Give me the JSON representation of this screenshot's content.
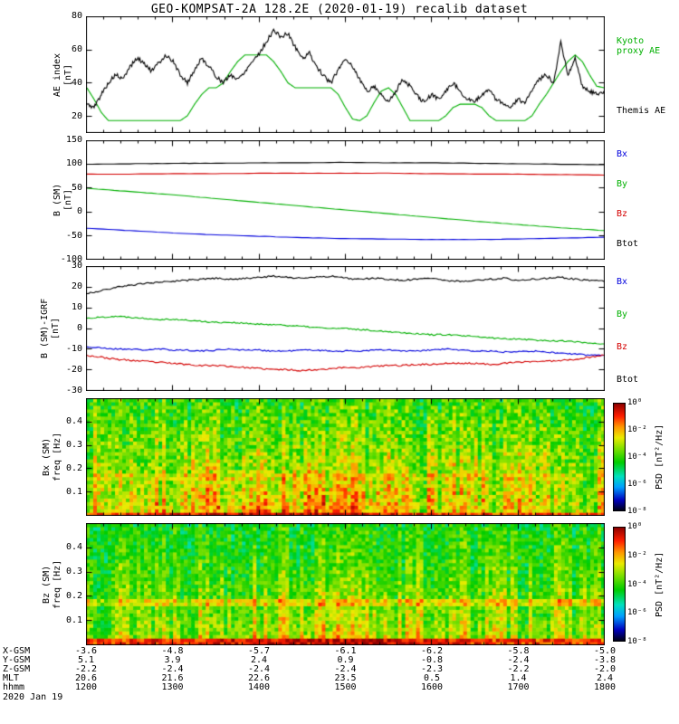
{
  "title": "GEO-KOMPSAT-2A 128.2E (2020-01-19) recalib dataset",
  "panels": {
    "ae": {
      "ylabel": "AE index\n[nT]",
      "yticks": [
        "80",
        "60",
        "40",
        "20"
      ],
      "legend_kyoto": "Kyoto\nproxy AE",
      "legend_themis": "Themis AE"
    },
    "bsm": {
      "ylabel": "B (SM)\n[nT]",
      "yticks": [
        "150",
        "100",
        "50",
        "0",
        "-50",
        "-100"
      ],
      "legend": [
        "Bx",
        "By",
        "Bz",
        "Btot"
      ]
    },
    "bigrf": {
      "ylabel": "B (SM)-IGRF\n[nT]",
      "yticks": [
        "30",
        "20",
        "10",
        "0",
        "-10",
        "-20",
        "-30"
      ],
      "legend": [
        "Bx",
        "By",
        "Bz",
        "Btot"
      ]
    },
    "specx": {
      "ylabel": "Bx (SM)\nfreq [Hz]",
      "yticks": [
        "0.4",
        "0.3",
        "0.2",
        "0.1"
      ],
      "cbar_ticks": [
        "10⁰",
        "10⁻²",
        "10⁻⁴",
        "10⁻⁶",
        "10⁻⁸"
      ],
      "cbar_label": "PSD [nT²/Hz]"
    },
    "specz": {
      "ylabel": "Bz (SM)\nfreq [Hz]",
      "yticks": [
        "0.4",
        "0.3",
        "0.2",
        "0.1"
      ],
      "cbar_ticks": [
        "10⁰",
        "10⁻²",
        "10⁻⁴",
        "10⁻⁶",
        "10⁻⁸"
      ],
      "cbar_label": "PSD [nT²/Hz]"
    }
  },
  "legend_colors": {
    "Bx": "#0000dd",
    "By": "#00b000",
    "Bz": "#d40000",
    "Btot": "#000000",
    "kyoto": "#00b000",
    "themis": "#000000"
  },
  "bottom": {
    "rows": [
      {
        "label": "X-GSM",
        "values": [
          "-3.6",
          "-4.8",
          "-5.7",
          "-6.1",
          "-6.2",
          "-5.8",
          "-5.0"
        ]
      },
      {
        "label": "Y-GSM",
        "values": [
          "5.1",
          "3.9",
          "2.4",
          "0.9",
          "-0.8",
          "-2.4",
          "-3.8"
        ]
      },
      {
        "label": "Z-GSM",
        "values": [
          "-2.2",
          "-2.4",
          "-2.4",
          "-2.4",
          "-2.3",
          "-2.2",
          "-2.0"
        ]
      },
      {
        "label": "MLT",
        "values": [
          "20.6",
          "21.6",
          "22.6",
          "23.5",
          "0.5",
          "1.4",
          "2.4"
        ]
      },
      {
        "label": "hhmm",
        "values": [
          "1200",
          "1300",
          "1400",
          "1500",
          "1600",
          "1700",
          "1800"
        ]
      }
    ],
    "date": "2020 Jan 19"
  },
  "chart_data": [
    {
      "type": "line",
      "title": "AE index",
      "ylabel": "AE index [nT]",
      "xticks_hhmm": [
        "1200",
        "1300",
        "1400",
        "1500",
        "1600",
        "1700",
        "1800"
      ],
      "ylim": [
        10,
        80
      ],
      "yticks": [
        20,
        40,
        60,
        80
      ],
      "series": [
        {
          "name": "Kyoto proxy AE",
          "color": "#00b000",
          "jitter": 0,
          "seed": 3,
          "values": [
            37,
            30,
            22,
            17,
            17,
            17,
            17,
            17,
            17,
            17,
            17,
            17,
            17,
            17,
            20,
            27,
            33,
            37,
            37,
            40,
            47,
            53,
            57,
            57,
            57,
            57,
            53,
            47,
            40,
            37,
            37,
            37,
            37,
            37,
            37,
            33,
            25,
            18,
            17,
            20,
            28,
            35,
            37,
            33,
            25,
            17,
            17,
            17,
            17,
            17,
            20,
            25,
            27,
            27,
            27,
            25,
            20,
            17,
            17,
            17,
            17,
            17,
            20,
            27,
            33,
            40,
            47,
            53,
            57,
            53,
            45,
            38,
            37
          ]
        },
        {
          "name": "Themis AE",
          "color": "#000000",
          "jitter": 2.5,
          "seed": 5,
          "values": [
            27,
            25,
            33,
            40,
            45,
            42,
            50,
            55,
            52,
            47,
            52,
            57,
            53,
            45,
            40,
            48,
            55,
            50,
            44,
            40,
            45,
            42,
            47,
            53,
            58,
            65,
            72,
            68,
            70,
            62,
            55,
            58,
            50,
            44,
            40,
            48,
            55,
            50,
            42,
            35,
            38,
            33,
            28,
            35,
            42,
            38,
            32,
            28,
            33,
            30,
            35,
            40,
            35,
            30,
            28,
            33,
            36,
            30,
            27,
            25,
            30,
            28,
            35,
            42,
            45,
            40,
            65,
            45,
            55,
            38,
            35,
            33,
            35
          ]
        }
      ]
    },
    {
      "type": "line",
      "title": "B (SM)",
      "ylabel": "B (SM) [nT]",
      "ylim": [
        -100,
        150
      ],
      "yticks": [
        -100,
        -50,
        0,
        50,
        100,
        150
      ],
      "series": [
        {
          "name": "Bx",
          "color": "#0000dd",
          "jitter": 0.6,
          "seed": 11,
          "values": [
            -35,
            -40,
            -45,
            -49,
            -52,
            -55,
            -57,
            -58,
            -59,
            -59,
            -58,
            -56,
            -54
          ]
        },
        {
          "name": "By",
          "color": "#00b000",
          "jitter": 0.5,
          "seed": 12,
          "values": [
            50,
            43,
            36,
            28,
            20,
            12,
            4,
            -4,
            -12,
            -20,
            -27,
            -34,
            -40
          ]
        },
        {
          "name": "Bz",
          "color": "#d40000",
          "jitter": 0.6,
          "seed": 13,
          "values": [
            80,
            80,
            81,
            81,
            82,
            82,
            82,
            82,
            81,
            80,
            80,
            79,
            78
          ]
        },
        {
          "name": "Btot",
          "color": "#000000",
          "jitter": 0.6,
          "seed": 14,
          "values": [
            101,
            102,
            103,
            103,
            104,
            104,
            105,
            104,
            104,
            103,
            102,
            101,
            100
          ]
        }
      ]
    },
    {
      "type": "line",
      "title": "B (SM)-IGRF",
      "ylabel": "B (SM)-IGRF [nT]",
      "ylim": [
        -30,
        30
      ],
      "yticks": [
        -30,
        -20,
        -10,
        0,
        10,
        20,
        30
      ],
      "series": [
        {
          "name": "Bx",
          "color": "#0000dd",
          "jitter": 0.7,
          "seed": 21,
          "values": [
            -9,
            -9.5,
            -10,
            -10,
            -10.5,
            -10,
            -10.5,
            -10.5,
            -11,
            -10.5,
            -10,
            -10.5,
            -10.5,
            -11,
            -11,
            -10.5,
            -10.5,
            -11,
            -11,
            -11,
            -10.5,
            -10.5,
            -11,
            -11,
            -10.5,
            -10,
            -10.5,
            -11,
            -11,
            -11.5,
            -11,
            -11,
            -11.5,
            -12,
            -12.5,
            -13,
            -13
          ]
        },
        {
          "name": "By",
          "color": "#00b000",
          "jitter": 0.7,
          "seed": 22,
          "values": [
            5,
            5.5,
            6,
            5.5,
            5,
            4.5,
            4.5,
            4,
            3.5,
            3,
            3,
            2.5,
            2,
            2,
            1.5,
            1,
            0.5,
            0,
            0,
            -0.5,
            -1,
            -1.5,
            -2,
            -2.5,
            -3,
            -3,
            -3.5,
            -4,
            -4.5,
            -5,
            -5,
            -5.5,
            -6,
            -6,
            -6.5,
            -7,
            -7.5
          ]
        },
        {
          "name": "Bz",
          "color": "#d40000",
          "jitter": 0.8,
          "seed": 23,
          "values": [
            -13,
            -14,
            -15,
            -15.5,
            -16,
            -16.5,
            -17,
            -17.5,
            -18,
            -18,
            -18.5,
            -19,
            -19.5,
            -20,
            -20,
            -20.5,
            -20,
            -19.5,
            -19,
            -19,
            -18.5,
            -18,
            -18,
            -17.5,
            -17.5,
            -17,
            -17,
            -17,
            -17.5,
            -17,
            -16.5,
            -16,
            -16,
            -15.5,
            -15,
            -14,
            -13
          ]
        },
        {
          "name": "Btot",
          "color": "#000000",
          "jitter": 0.8,
          "seed": 24,
          "values": [
            17,
            18.5,
            20,
            21,
            22,
            22.5,
            23,
            23.5,
            24,
            24.5,
            24,
            24.5,
            25,
            25.5,
            25,
            24.5,
            25,
            25.5,
            24.5,
            24,
            24.5,
            24,
            23.5,
            24,
            24.5,
            23.5,
            23,
            23.5,
            24,
            24.5,
            23.5,
            24,
            24.5,
            25,
            24,
            23.5,
            23
          ]
        }
      ]
    },
    {
      "type": "heatmap",
      "title": "Bx (SM) PSD spectrogram",
      "ylabel": "freq [Hz]",
      "ylim": [
        0,
        0.5
      ],
      "yticks": [
        0.1,
        0.2,
        0.3,
        0.4
      ],
      "colorbar": {
        "label": "PSD [nT²/Hz]",
        "ticks_log10": [
          0,
          -2,
          -4,
          -6,
          -8
        ]
      },
      "profile": {
        "nx": 143,
        "ny": 33,
        "seed": 7,
        "bottom": 0.66,
        "top": 0.5,
        "noise": 0.12,
        "hot_rows": 1,
        "band_freq": 0.17,
        "band_boost": 0.05,
        "bump_center": 0.38,
        "bump_width": 0.22,
        "bump_boost": 0.16
      }
    },
    {
      "type": "heatmap",
      "title": "Bz (SM) PSD spectrogram",
      "ylabel": "freq [Hz]",
      "ylim": [
        0,
        0.5
      ],
      "yticks": [
        0.1,
        0.2,
        0.3,
        0.4
      ],
      "colorbar": {
        "label": "PSD [nT²/Hz]",
        "ticks_log10": [
          0,
          -2,
          -4,
          -6,
          -8
        ]
      },
      "profile": {
        "nx": 143,
        "ny": 34,
        "seed": 13,
        "bottom": 0.6,
        "top": 0.47,
        "noise": 0.1,
        "hot_rows": 2,
        "band_freq": 0.17,
        "band_boost": 0.13,
        "bump_center": 0.45,
        "bump_width": 0.3,
        "bump_boost": 0.1
      }
    }
  ]
}
